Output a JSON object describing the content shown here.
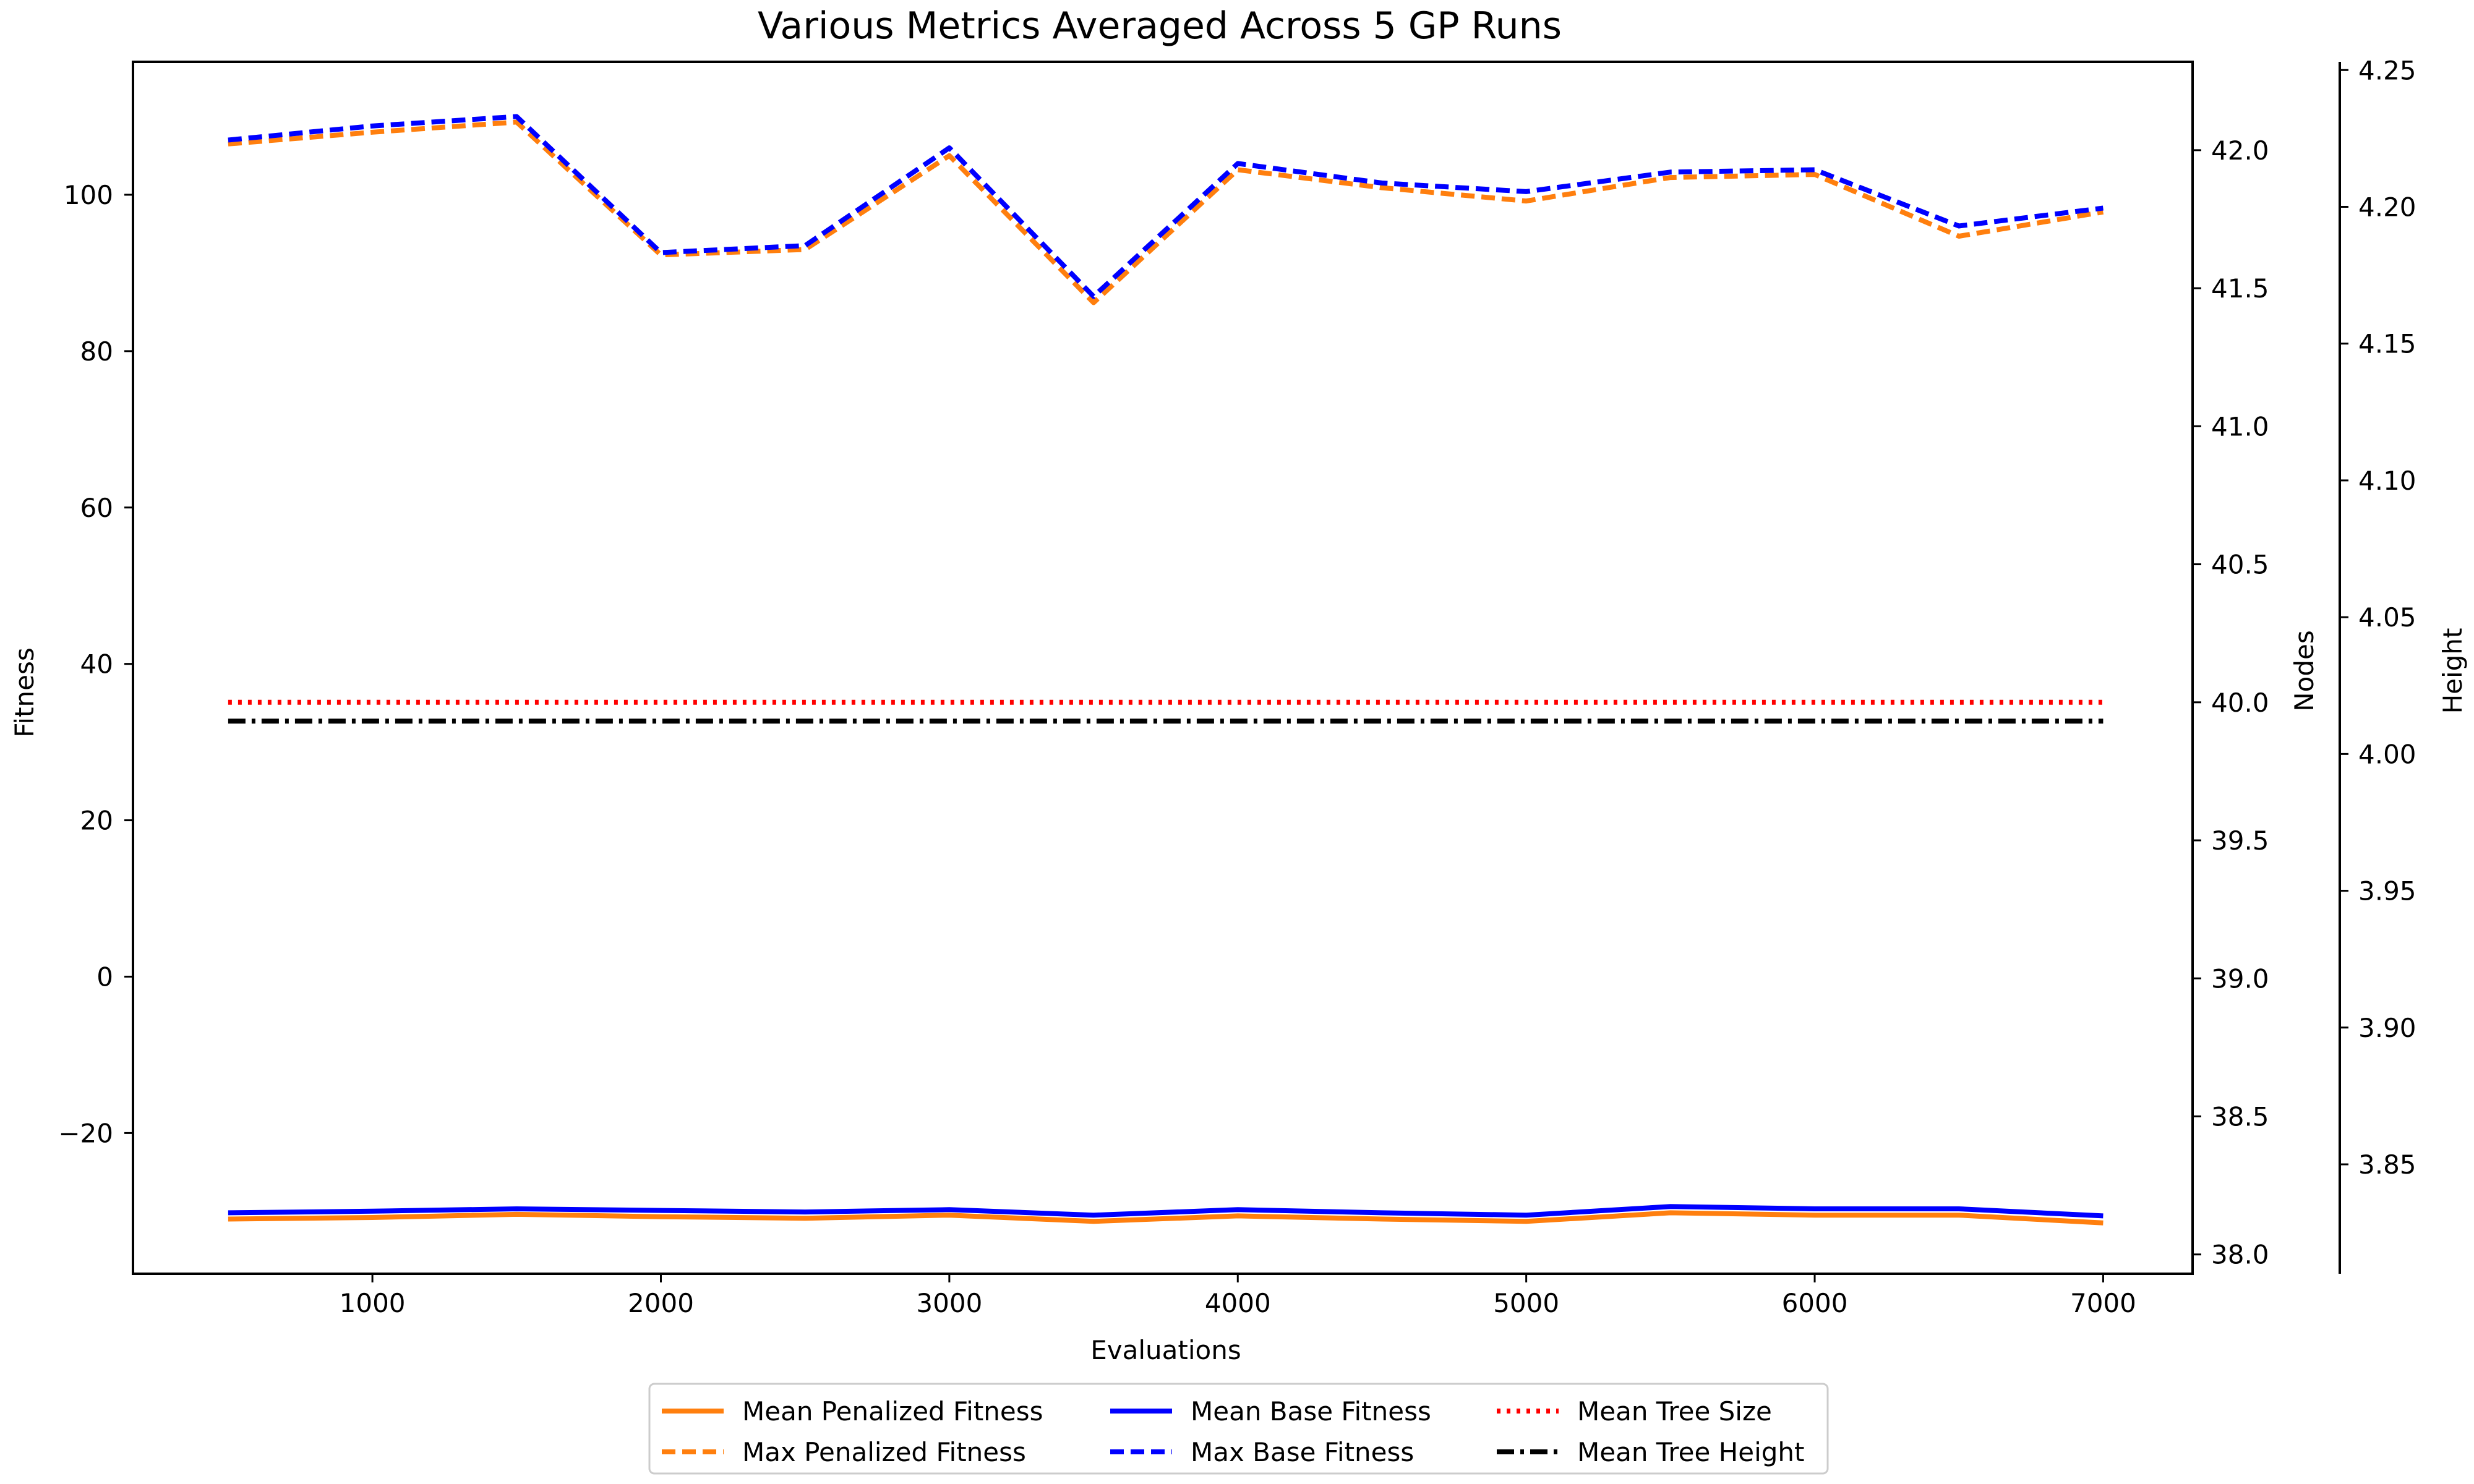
{
  "chart_data": {
    "type": "line",
    "title": "Various Metrics Averaged Across 5 GP Runs",
    "xlabel": "Evaluations",
    "x": [
      500,
      1000,
      1500,
      2000,
      2500,
      3000,
      3500,
      4000,
      4500,
      5000,
      5500,
      6000,
      6500,
      7000
    ],
    "xlim": [
      170,
      7310
    ],
    "xticks": [
      1000,
      2000,
      3000,
      4000,
      5000,
      6000,
      7000
    ],
    "axes": {
      "fitness": {
        "label": "Fitness",
        "lim": [
          -38,
          117
        ],
        "ticks": [
          -20,
          0,
          20,
          40,
          60,
          80,
          100
        ],
        "tick_labels": [
          "−20",
          "0",
          "20",
          "40",
          "60",
          "80",
          "100"
        ]
      },
      "nodes": {
        "label": "Nodes",
        "lim": [
          37.93,
          42.32
        ],
        "ticks": [
          38.0,
          38.5,
          39.0,
          39.5,
          40.0,
          40.5,
          41.0,
          41.5,
          42.0
        ],
        "tick_labels": [
          "38.0",
          "38.5",
          "39.0",
          "39.5",
          "40.0",
          "40.5",
          "41.0",
          "41.5",
          "42.0"
        ]
      },
      "height": {
        "label": "Height",
        "lim": [
          3.81,
          4.253
        ],
        "ticks": [
          3.85,
          3.9,
          3.95,
          4.0,
          4.05,
          4.1,
          4.15,
          4.2,
          4.25
        ],
        "tick_labels": [
          "3.85",
          "3.90",
          "3.95",
          "4.00",
          "4.05",
          "4.10",
          "4.15",
          "4.20",
          "4.25"
        ]
      }
    },
    "series": [
      {
        "name": "Mean Penalized Fitness",
        "axis": "fitness",
        "color": "#ff7f0e",
        "dash": "solid",
        "values": [
          -31.0,
          -30.8,
          -30.4,
          -30.7,
          -30.9,
          -30.5,
          -31.3,
          -30.6,
          -31.0,
          -31.3,
          -30.2,
          -30.5,
          -30.5,
          -31.5
        ]
      },
      {
        "name": "Max Penalized Fitness",
        "axis": "fitness",
        "color": "#ff7f0e",
        "dash": "dashed",
        "values": [
          106.5,
          108.0,
          109.3,
          92.3,
          93.0,
          105.0,
          86.2,
          103.2,
          100.9,
          99.2,
          102.2,
          102.6,
          94.7,
          97.8
        ]
      },
      {
        "name": "Mean Base Fitness",
        "axis": "fitness",
        "color": "#0000ff",
        "dash": "solid",
        "values": [
          -30.2,
          -30.0,
          -29.7,
          -29.9,
          -30.1,
          -29.8,
          -30.5,
          -29.8,
          -30.2,
          -30.5,
          -29.4,
          -29.7,
          -29.7,
          -30.6
        ]
      },
      {
        "name": "Max Base Fitness",
        "axis": "fitness",
        "color": "#0000ff",
        "dash": "dashed",
        "values": [
          107.0,
          108.8,
          110.0,
          92.6,
          93.5,
          106.0,
          87.0,
          104.0,
          101.5,
          100.4,
          102.9,
          103.2,
          96.0,
          98.3
        ]
      },
      {
        "name": "Mean Tree Size",
        "axis": "nodes",
        "color": "#ff0000",
        "dash": "dotted",
        "values": [
          40.0,
          40.0,
          40.0,
          40.0,
          40.0,
          40.0,
          40.0,
          40.0,
          40.0,
          40.0,
          40.0,
          40.0,
          40.0,
          40.0
        ]
      },
      {
        "name": "Mean Tree Height",
        "axis": "height",
        "color": "#000000",
        "dash": "dashdot",
        "values": [
          4.012,
          4.012,
          4.012,
          4.012,
          4.012,
          4.012,
          4.012,
          4.012,
          4.012,
          4.012,
          4.012,
          4.012,
          4.012,
          4.012
        ]
      }
    ],
    "legend": {
      "placement": "bottom-center",
      "columns": 3
    }
  }
}
